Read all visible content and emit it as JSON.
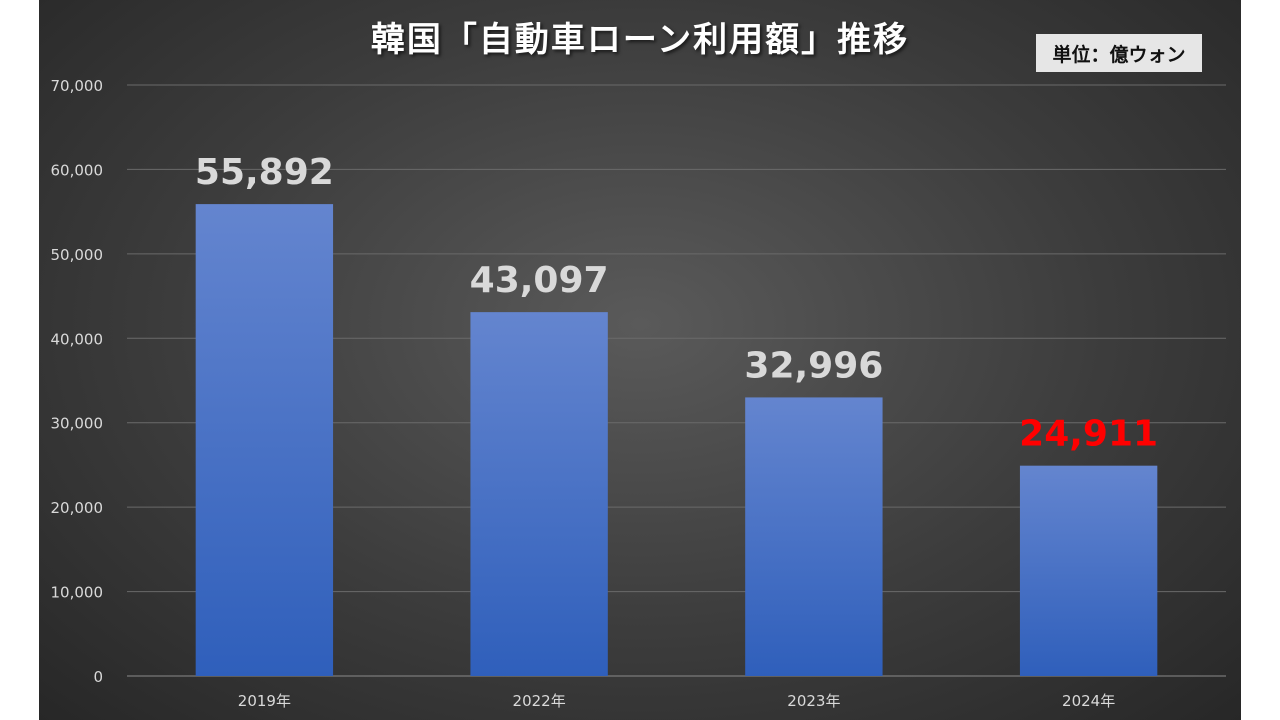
{
  "chart_data": {
    "type": "bar",
    "title": "韓国「自動車ローン利用額」推移",
    "unit_label": "単位：億ウォン",
    "categories": [
      "2019年",
      "2022年",
      "2023年",
      "2024年"
    ],
    "values": [
      55892,
      43097,
      32996,
      24911
    ],
    "data_labels": [
      "55,892",
      "43,097",
      "32,996",
      "24,911"
    ],
    "highlight_index": 3,
    "ylim": [
      0,
      70000
    ],
    "yticks": [
      0,
      10000,
      20000,
      30000,
      40000,
      50000,
      60000,
      70000
    ],
    "ytick_labels": [
      "0",
      "10,000",
      "20,000",
      "30,000",
      "40,000",
      "50,000",
      "60,000",
      "70,000"
    ],
    "grid": true,
    "legend": "none",
    "xlabel": "",
    "ylabel": ""
  },
  "colors": {
    "bar_top": "#6485cf",
    "bar_bottom": "#2f5fbb",
    "data_label": "#d9d9d9",
    "highlight_label": "#ff0000",
    "gridline": "#6a6a6a",
    "axis_text": "#d9d9d9"
  }
}
